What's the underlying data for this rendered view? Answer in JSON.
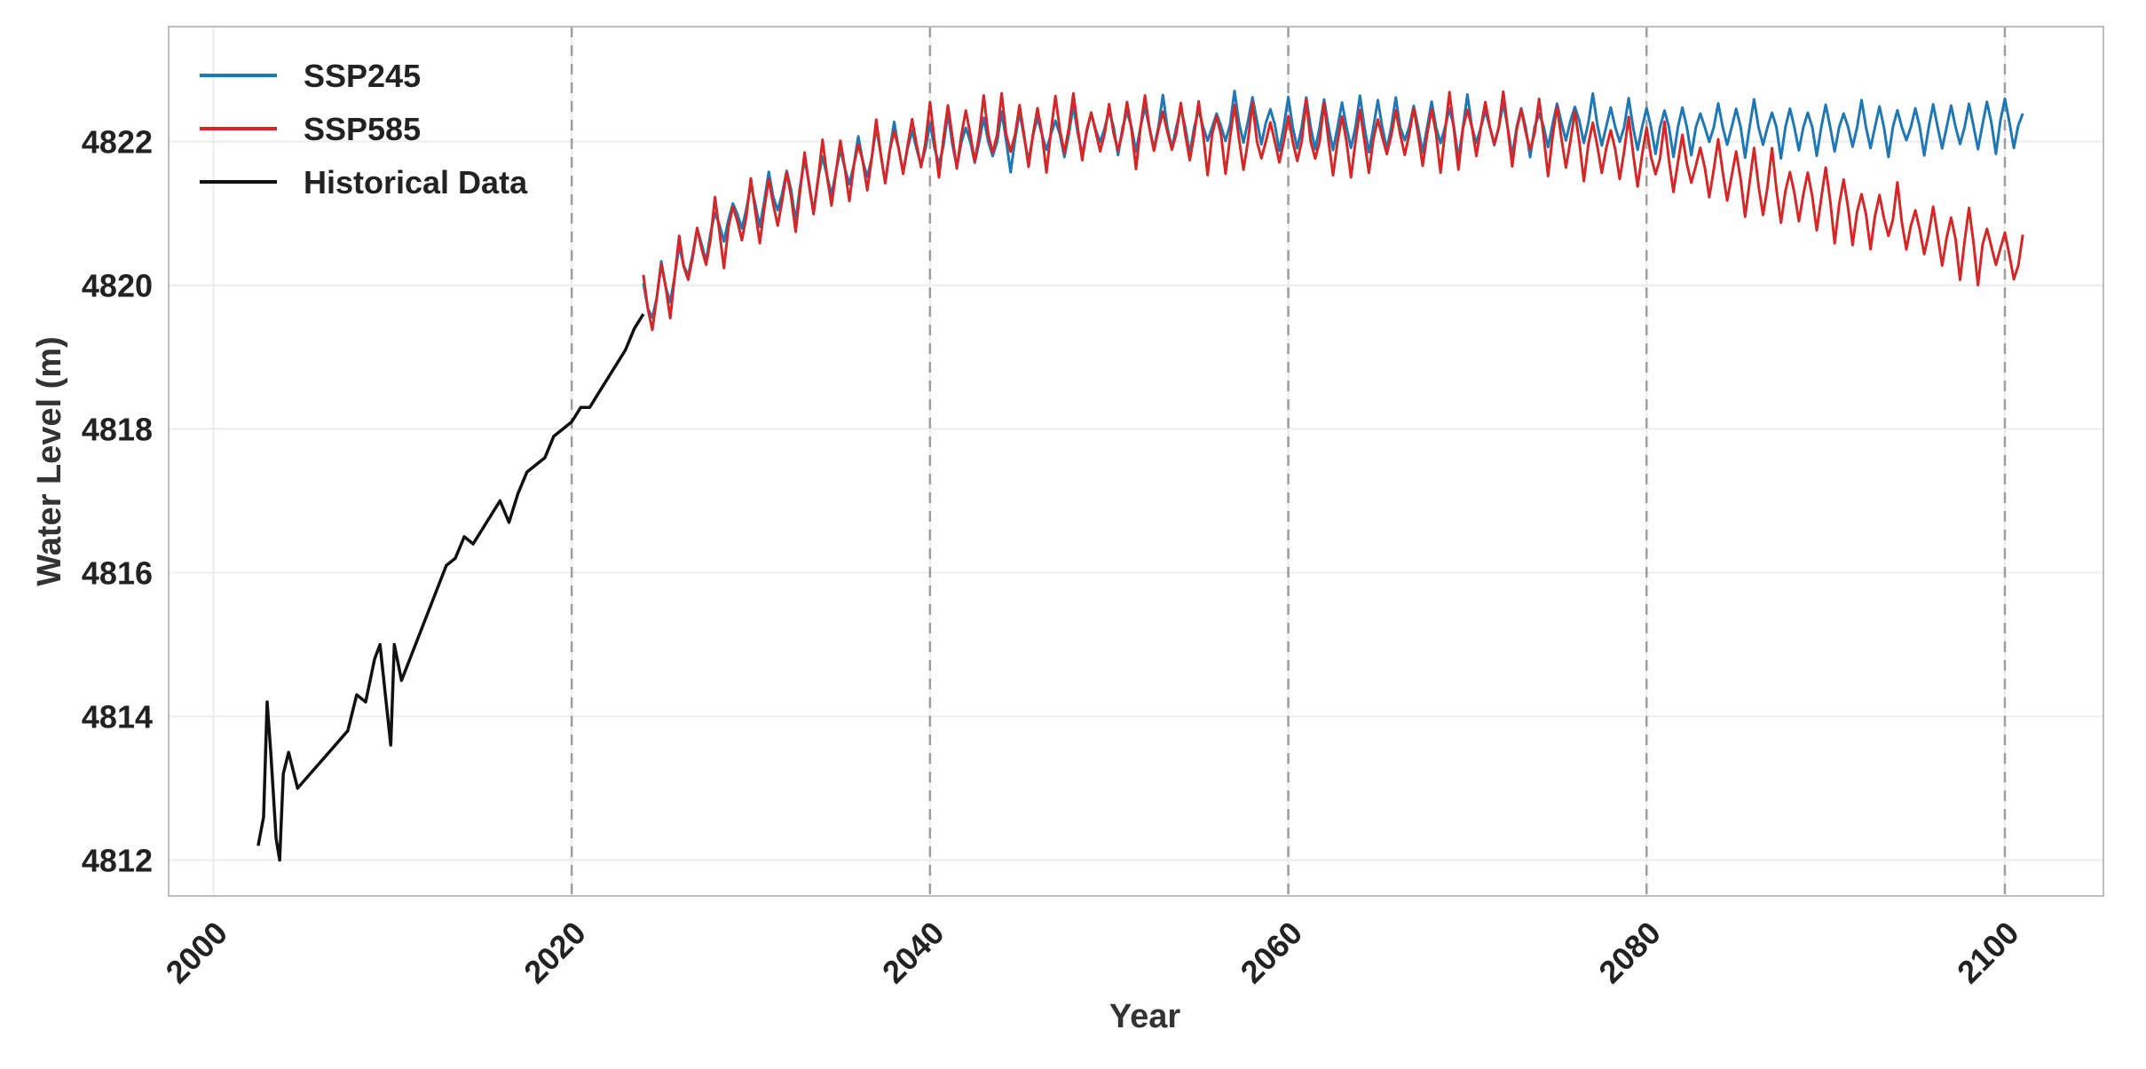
{
  "chart_data": {
    "type": "line",
    "xlabel": "Year",
    "ylabel": "Water Level (m)",
    "xlim": [
      1997.5,
      2105.5
    ],
    "ylim": [
      4811.5,
      4823.6
    ],
    "x_ticks": [
      2000,
      2020,
      2040,
      2060,
      2080,
      2100
    ],
    "y_ticks": [
      4812,
      4814,
      4816,
      4818,
      4820,
      4822
    ],
    "grid": true,
    "vertical_dashed_lines": [
      2020,
      2040,
      2060,
      2080,
      2100
    ],
    "legend_position": "top-left",
    "series": [
      {
        "name": "SSP245",
        "color": "#1f77b4",
        "points": [
          [
            2024,
            4819.6
          ],
          [
            2026,
            4820.2
          ],
          [
            2028,
            4820.8
          ],
          [
            2030,
            4821.1
          ],
          [
            2032,
            4821.3
          ],
          [
            2034,
            4821.5
          ],
          [
            2036,
            4821.7
          ],
          [
            2038,
            4821.9
          ],
          [
            2040,
            4821.9
          ],
          [
            2042,
            4822.0
          ],
          [
            2044,
            4822.0
          ],
          [
            2046,
            4822.1
          ],
          [
            2048,
            4822.1
          ],
          [
            2050,
            4822.2
          ],
          [
            2052,
            4822.2
          ],
          [
            2054,
            4822.2
          ],
          [
            2056,
            4822.2
          ],
          [
            2058,
            4822.3
          ],
          [
            2060,
            4822.2
          ],
          [
            2062,
            4822.2
          ],
          [
            2064,
            4822.2
          ],
          [
            2066,
            4822.2
          ],
          [
            2068,
            4822.2
          ],
          [
            2070,
            4822.2
          ],
          [
            2072,
            4822.2
          ],
          [
            2074,
            4822.2
          ],
          [
            2076,
            4822.3
          ],
          [
            2078,
            4822.2
          ],
          [
            2080,
            4822.2
          ],
          [
            2082,
            4822.2
          ],
          [
            2084,
            4822.2
          ],
          [
            2086,
            4822.2
          ],
          [
            2088,
            4822.2
          ],
          [
            2090,
            4822.2
          ],
          [
            2092,
            4822.2
          ],
          [
            2094,
            4822.2
          ],
          [
            2096,
            4822.2
          ],
          [
            2098,
            4822.2
          ],
          [
            2100,
            4822.3
          ],
          [
            2101,
            4822.2
          ]
        ],
        "oscillation_amplitude": 0.4
      },
      {
        "name": "SSP585",
        "color": "#d62728",
        "points": [
          [
            2024,
            4819.6
          ],
          [
            2026,
            4820.2
          ],
          [
            2028,
            4820.7
          ],
          [
            2030,
            4821.0
          ],
          [
            2032,
            4821.2
          ],
          [
            2034,
            4821.5
          ],
          [
            2036,
            4821.7
          ],
          [
            2038,
            4821.9
          ],
          [
            2040,
            4822.0
          ],
          [
            2042,
            4822.1
          ],
          [
            2044,
            4822.1
          ],
          [
            2046,
            4822.1
          ],
          [
            2048,
            4822.2
          ],
          [
            2050,
            4822.1
          ],
          [
            2052,
            4822.2
          ],
          [
            2054,
            4822.1
          ],
          [
            2056,
            4822.1
          ],
          [
            2058,
            4822.0
          ],
          [
            2060,
            4822.0
          ],
          [
            2062,
            4822.0
          ],
          [
            2064,
            4822.0
          ],
          [
            2066,
            4822.1
          ],
          [
            2068,
            4822.1
          ],
          [
            2070,
            4822.2
          ],
          [
            2072,
            4822.2
          ],
          [
            2074,
            4822.1
          ],
          [
            2076,
            4822.0
          ],
          [
            2078,
            4821.9
          ],
          [
            2080,
            4821.8
          ],
          [
            2082,
            4821.7
          ],
          [
            2084,
            4821.6
          ],
          [
            2086,
            4821.4
          ],
          [
            2088,
            4821.3
          ],
          [
            2090,
            4821.2
          ],
          [
            2092,
            4821.0
          ],
          [
            2094,
            4820.9
          ],
          [
            2096,
            4820.7
          ],
          [
            2098,
            4820.6
          ],
          [
            2100,
            4820.5
          ],
          [
            2101,
            4820.2
          ]
        ],
        "oscillation_amplitude": 0.5
      },
      {
        "name": "Historical Data",
        "color": "#111111",
        "points": [
          [
            2002.5,
            4812.2
          ],
          [
            2002.8,
            4812.6
          ],
          [
            2003.0,
            4814.2
          ],
          [
            2003.2,
            4813.5
          ],
          [
            2003.5,
            4812.3
          ],
          [
            2003.7,
            4812.0
          ],
          [
            2003.9,
            4813.2
          ],
          [
            2004.2,
            4813.5
          ],
          [
            2004.5,
            4813.2
          ],
          [
            2004.7,
            4813.0
          ],
          [
            2007.5,
            4813.8
          ],
          [
            2008.0,
            4814.3
          ],
          [
            2008.5,
            4814.2
          ],
          [
            2009.0,
            4814.8
          ],
          [
            2009.3,
            4815.0
          ],
          [
            2009.6,
            4814.3
          ],
          [
            2009.9,
            4813.6
          ],
          [
            2010.1,
            4815.0
          ],
          [
            2010.5,
            4814.5
          ],
          [
            2013.0,
            4816.1
          ],
          [
            2013.5,
            4816.2
          ],
          [
            2014.0,
            4816.5
          ],
          [
            2014.5,
            4816.4
          ],
          [
            2015.0,
            4816.6
          ],
          [
            2015.5,
            4816.8
          ],
          [
            2016.0,
            4817.0
          ],
          [
            2016.5,
            4816.7
          ],
          [
            2017.0,
            4817.1
          ],
          [
            2017.5,
            4817.4
          ],
          [
            2018.0,
            4817.5
          ],
          [
            2018.5,
            4817.6
          ],
          [
            2019.0,
            4817.9
          ],
          [
            2019.5,
            4818.0
          ],
          [
            2020.0,
            4818.1
          ],
          [
            2020.5,
            4818.3
          ],
          [
            2021.0,
            4818.3
          ],
          [
            2021.5,
            4818.5
          ],
          [
            2022.0,
            4818.7
          ],
          [
            2022.5,
            4818.9
          ],
          [
            2023.0,
            4819.1
          ],
          [
            2023.5,
            4819.4
          ],
          [
            2024.0,
            4819.6
          ]
        ]
      }
    ]
  }
}
